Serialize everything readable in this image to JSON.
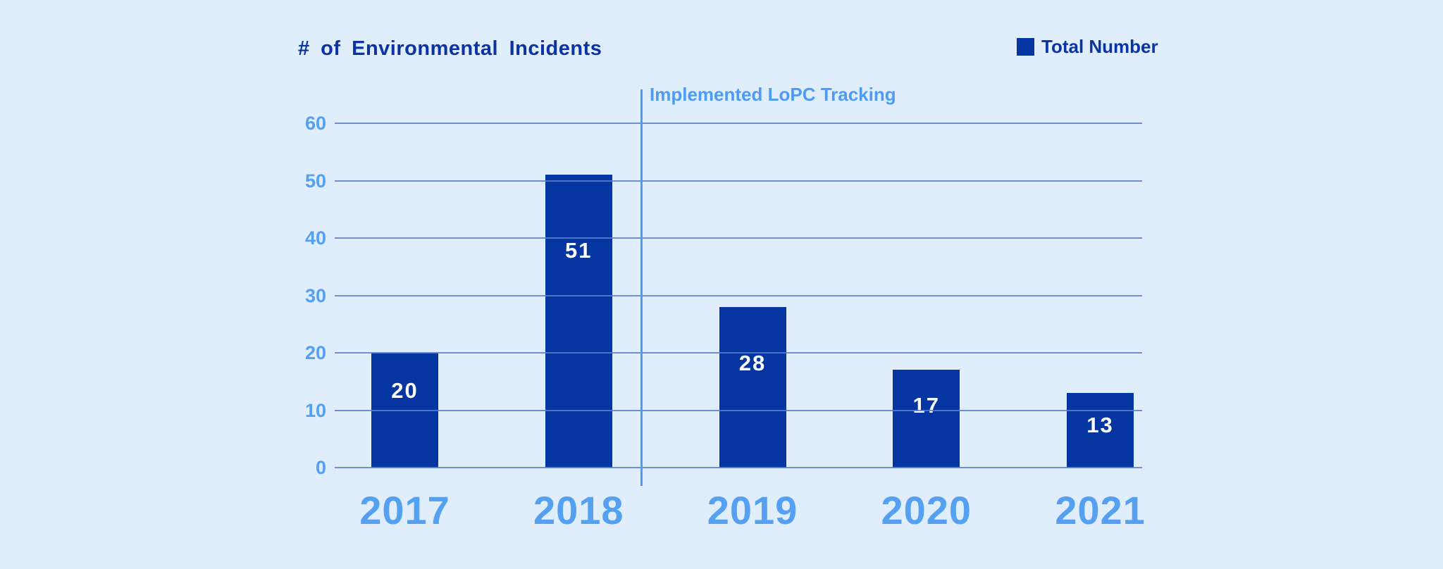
{
  "chart_data": {
    "type": "bar",
    "title": "# of Environmental Incidents",
    "legend": {
      "label": "Total Number",
      "position": "top-right",
      "swatch_color": "#0435a1"
    },
    "annotation": {
      "text": "Implemented LoPC Tracking",
      "line": "vertical",
      "line_between": [
        "2018",
        "2019"
      ]
    },
    "categories": [
      "2017",
      "2018",
      "2019",
      "2020",
      "2021"
    ],
    "series": [
      {
        "name": "Total Number",
        "values": [
          20,
          51,
          28,
          17,
          13
        ]
      }
    ],
    "bar_labels": [
      "20",
      "51",
      "28",
      "17",
      "13"
    ],
    "xlabel": "",
    "ylabel": "",
    "yticks": [
      0,
      10,
      20,
      30,
      40,
      50,
      60
    ],
    "ylim": [
      0,
      60
    ],
    "grid": "horizontal",
    "gridlines_over_bars": true,
    "colors": {
      "background": "#e0edfb",
      "bar": "#0435a1",
      "title_text": "#0a33a3",
      "legend_text": "#0a33a3",
      "axis_text": "#55a0f0",
      "gridline": "#5b7dd0",
      "annotation": "#4d9bf5",
      "bar_label_text": "#ffffff"
    }
  }
}
